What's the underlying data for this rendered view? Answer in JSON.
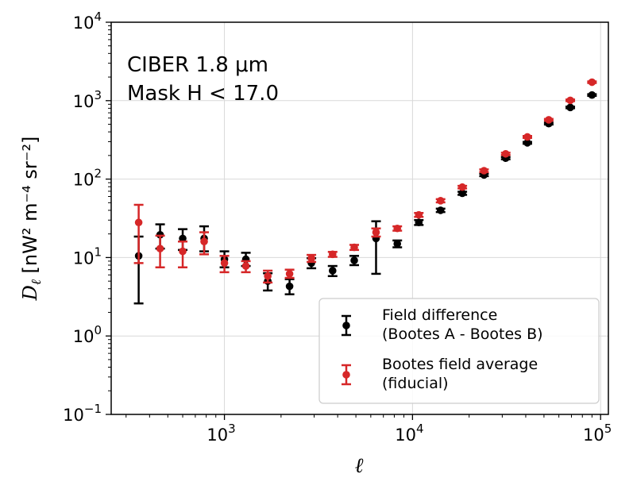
{
  "chart_data": {
    "type": "scatter",
    "xscale": "log",
    "yscale": "log",
    "xlim": [
      250,
      110000
    ],
    "ylim": [
      0.1,
      10000
    ],
    "xlabel": "ℓ",
    "ylabel": "D_ℓ [nW² m⁻⁴ sr⁻²]",
    "xticks": [
      {
        "value": 1000,
        "base": "10",
        "exp": "3"
      },
      {
        "value": 10000,
        "base": "10",
        "exp": "4"
      },
      {
        "value": 100000,
        "base": "10",
        "exp": "5"
      }
    ],
    "yticks": [
      {
        "value": 0.1,
        "base": "10",
        "exp": "−1"
      },
      {
        "value": 1,
        "base": "10",
        "exp": "0"
      },
      {
        "value": 10,
        "base": "10",
        "exp": "1"
      },
      {
        "value": 100,
        "base": "10",
        "exp": "2"
      },
      {
        "value": 1000,
        "base": "10",
        "exp": "3"
      },
      {
        "value": 10000,
        "base": "10",
        "exp": "4"
      }
    ],
    "grid": true,
    "annotation": [
      "CIBER 1.8 μm",
      "Mask H < 17.0"
    ],
    "legend_position": "lower-right",
    "series": [
      {
        "name": "Field difference (Bootes A - Bootes B)",
        "legend_lines": [
          "Field difference",
          "(Bootes A - Bootes B)"
        ],
        "color": "#000000",
        "points": [
          {
            "x": 350,
            "y": 10.5,
            "lo": 2.6,
            "hi": 18.5
          },
          {
            "x": 455,
            "y": 19.5,
            "lo": 13.0,
            "hi": 26.5
          },
          {
            "x": 600,
            "y": 17.5,
            "lo": 12.5,
            "hi": 23.0
          },
          {
            "x": 780,
            "y": 17.5,
            "lo": 12.0,
            "hi": 25.0
          },
          {
            "x": 1000,
            "y": 9.5,
            "lo": 7.5,
            "hi": 12.0
          },
          {
            "x": 1300,
            "y": 9.5,
            "lo": 7.8,
            "hi": 11.5
          },
          {
            "x": 1700,
            "y": 5.0,
            "lo": 3.8,
            "hi": 6.3
          },
          {
            "x": 2220,
            "y": 4.3,
            "lo": 3.4,
            "hi": 5.3
          },
          {
            "x": 2900,
            "y": 8.5,
            "lo": 7.3,
            "hi": 9.8
          },
          {
            "x": 3760,
            "y": 6.8,
            "lo": 5.8,
            "hi": 7.8
          },
          {
            "x": 4900,
            "y": 9.2,
            "lo": 8.0,
            "hi": 10.5
          },
          {
            "x": 6400,
            "y": 17.5,
            "lo": 6.2,
            "hi": 29.0
          },
          {
            "x": 8300,
            "y": 15.0,
            "lo": 13.5,
            "hi": 16.5
          },
          {
            "x": 10800,
            "y": 28.0,
            "lo": 26.0,
            "hi": 30.0
          },
          {
            "x": 14100,
            "y": 40.0,
            "lo": 38.0,
            "hi": 42.0
          },
          {
            "x": 18400,
            "y": 66.0,
            "lo": 63.0,
            "hi": 69.0
          },
          {
            "x": 24000,
            "y": 113.0,
            "lo": 109.0,
            "hi": 117.0
          },
          {
            "x": 31300,
            "y": 185.0,
            "lo": 179.0,
            "hi": 191.0
          },
          {
            "x": 40800,
            "y": 290.0,
            "lo": 282.0,
            "hi": 298.0
          },
          {
            "x": 53000,
            "y": 510.0,
            "lo": 496.0,
            "hi": 524.0
          },
          {
            "x": 69000,
            "y": 820.0,
            "lo": 800.0,
            "hi": 840.0
          },
          {
            "x": 90000,
            "y": 1180.0,
            "lo": 1150.0,
            "hi": 1210.0
          }
        ]
      },
      {
        "name": "Bootes field average (fiducial)",
        "legend_lines": [
          "Bootes field average",
          "(fiducial)"
        ],
        "color": "#d62728",
        "points": [
          {
            "x": 350,
            "y": 28.0,
            "lo": 8.5,
            "hi": 47.0
          },
          {
            "x": 455,
            "y": 13.0,
            "lo": 7.5,
            "hi": 19.0
          },
          {
            "x": 600,
            "y": 12.0,
            "lo": 7.5,
            "hi": 16.0
          },
          {
            "x": 780,
            "y": 16.0,
            "lo": 11.0,
            "hi": 21.0
          },
          {
            "x": 1000,
            "y": 8.5,
            "lo": 6.5,
            "hi": 10.5
          },
          {
            "x": 1300,
            "y": 7.8,
            "lo": 6.5,
            "hi": 9.0
          },
          {
            "x": 1700,
            "y": 5.8,
            "lo": 4.8,
            "hi": 6.8
          },
          {
            "x": 2220,
            "y": 6.2,
            "lo": 5.5,
            "hi": 7.0
          },
          {
            "x": 2900,
            "y": 9.8,
            "lo": 8.8,
            "hi": 10.8
          },
          {
            "x": 3760,
            "y": 11.0,
            "lo": 10.2,
            "hi": 11.8
          },
          {
            "x": 4900,
            "y": 13.5,
            "lo": 12.5,
            "hi": 14.5
          },
          {
            "x": 6400,
            "y": 21.0,
            "lo": 18.5,
            "hi": 23.5
          },
          {
            "x": 8300,
            "y": 23.5,
            "lo": 22.0,
            "hi": 25.0
          },
          {
            "x": 10800,
            "y": 35.0,
            "lo": 33.0,
            "hi": 37.0
          },
          {
            "x": 14100,
            "y": 53.0,
            "lo": 50.5,
            "hi": 55.5
          },
          {
            "x": 18400,
            "y": 79.0,
            "lo": 76.0,
            "hi": 82.0
          },
          {
            "x": 24000,
            "y": 128.0,
            "lo": 123.0,
            "hi": 133.0
          },
          {
            "x": 31300,
            "y": 210.0,
            "lo": 203.0,
            "hi": 217.0
          },
          {
            "x": 40800,
            "y": 345.0,
            "lo": 335.0,
            "hi": 355.0
          },
          {
            "x": 53000,
            "y": 570.0,
            "lo": 555.0,
            "hi": 585.0
          },
          {
            "x": 69000,
            "y": 1010.0,
            "lo": 985.0,
            "hi": 1035.0
          },
          {
            "x": 90000,
            "y": 1720.0,
            "lo": 1680.0,
            "hi": 1760.0
          }
        ]
      }
    ]
  }
}
